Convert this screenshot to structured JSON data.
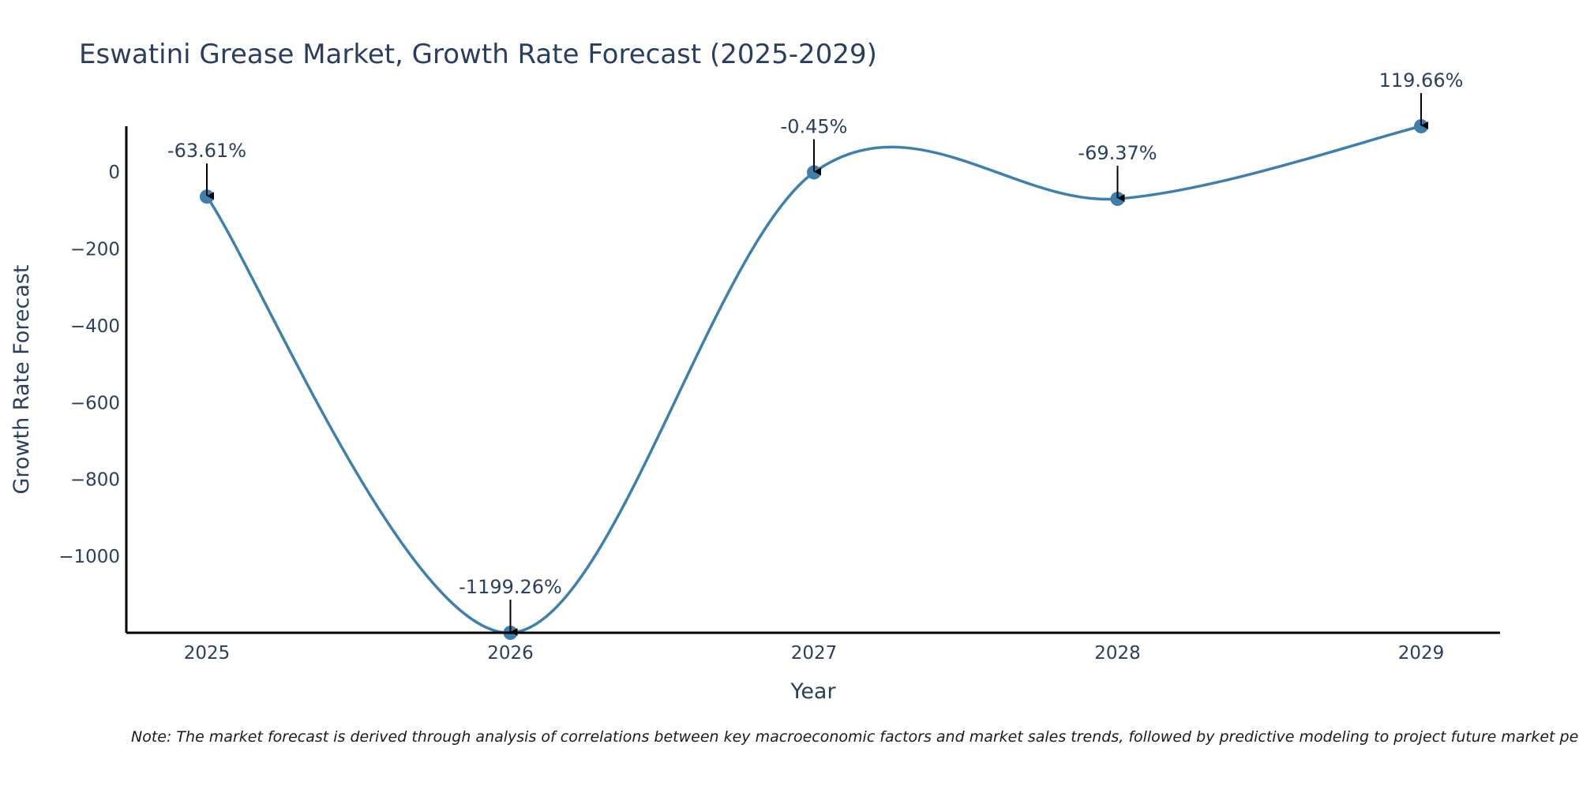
{
  "chart_data": {
    "type": "line",
    "title": "Eswatini Grease Market, Growth Rate Forecast (2025-2029)",
    "xlabel": "Year",
    "ylabel": "Growth Rate Forecast",
    "categories": [
      "2025",
      "2026",
      "2027",
      "2028",
      "2029"
    ],
    "values": [
      -63.61,
      -1199.26,
      -0.45,
      -69.37,
      119.66
    ],
    "annotations": [
      "-63.61%",
      "-1199.26%",
      "-0.45%",
      "-69.37%",
      "119.66%"
    ],
    "yticks": [
      0,
      -200,
      -400,
      -600,
      -800,
      -1000
    ],
    "ytick_labels": [
      "0",
      "−200",
      "−400",
      "−600",
      "−800",
      "−1000"
    ],
    "ylim": [
      -1199.26,
      119.66
    ],
    "line_color": "#3d7fad",
    "grid": false
  },
  "note": "Note: The market forecast is derived through analysis of correlations between key macroeconomic factors and market sales trends, followed by predictive modeling to project future market performance."
}
